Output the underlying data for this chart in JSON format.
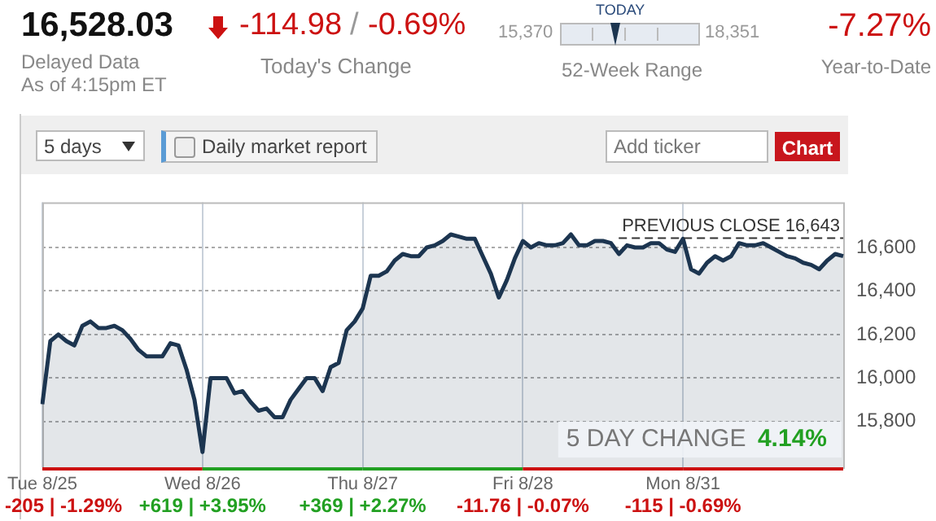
{
  "chart_data": [
    {
      "type": "other",
      "title": "16,528.03",
      "annotations": [
        "Delayed Data",
        "As of 4:15pm ET",
        "-114.98",
        "/",
        "-0.69%",
        "Today's Change",
        "TODAY",
        "15,370",
        "18,351",
        "52-Week Range",
        "-7.27%",
        "Year-to-Date",
        "5 days",
        "Daily market report",
        "Add ticker",
        "Chart"
      ]
    },
    {
      "type": "area",
      "categories": [
        "Tue 8/25",
        null,
        null,
        null,
        null,
        null,
        null,
        null,
        null,
        null,
        null,
        null,
        null,
        null,
        null,
        null,
        null,
        null,
        null,
        null,
        "Wed 8/26",
        null,
        null,
        null,
        null,
        null,
        null,
        null,
        null,
        null,
        null,
        null,
        null,
        null,
        null,
        null,
        null,
        null,
        null,
        null,
        "Thu 8/27",
        null,
        null,
        null,
        null,
        null,
        null,
        null,
        null,
        null,
        null,
        null,
        null,
        null,
        null,
        null,
        null,
        null,
        null,
        null,
        "Fri 8/28",
        null,
        null,
        null,
        null,
        null,
        null,
        null,
        null,
        null,
        null,
        null,
        null,
        null,
        null,
        null,
        null,
        null,
        null,
        null,
        "Mon 8/31",
        null,
        null,
        null,
        null,
        null,
        null,
        null,
        null,
        null,
        null,
        null,
        null,
        null,
        null,
        null,
        null,
        null,
        null,
        null,
        null
      ],
      "series": [
        {
          "color": "#1c3550",
          "values": [
            15880,
            16170,
            16200,
            16170,
            16150,
            16240,
            16260,
            16230,
            16230,
            16240,
            16220,
            16180,
            16130,
            16100,
            16100,
            16100,
            16160,
            16150,
            16040,
            15900,
            15660,
            16000,
            16000,
            16000,
            15930,
            15940,
            15890,
            15850,
            15860,
            15820,
            15820,
            15900,
            15950,
            16000,
            16000,
            15940,
            16050,
            16070,
            16220,
            16260,
            16320,
            16470,
            16470,
            16490,
            16540,
            16570,
            16560,
            16560,
            16600,
            16610,
            16630,
            16660,
            16650,
            16640,
            16640,
            16560,
            16480,
            16370,
            16450,
            16550,
            16630,
            16600,
            16620,
            16610,
            16610,
            16620,
            16660,
            16610,
            16610,
            16630,
            16630,
            16620,
            16570,
            16610,
            16600,
            16600,
            16620,
            16620,
            16590,
            16580,
            16640,
            16500,
            16480,
            16530,
            16560,
            16540,
            16560,
            16620,
            16610,
            16610,
            16620,
            16600,
            16580,
            16560,
            16550,
            16530,
            16520,
            16500,
            16540,
            16570,
            16560
          ]
        }
      ],
      "ylim": [
        15590,
        16808
      ],
      "yticks": [
        {
          "value": 15800,
          "label": "15,800"
        },
        {
          "value": 16000,
          "label": "16,000"
        },
        {
          "value": 16200,
          "label": "16,200"
        },
        {
          "value": 16400,
          "label": "16,400"
        },
        {
          "value": 16600,
          "label": "16,600"
        }
      ],
      "grid": true,
      "legend": false,
      "marker": "none",
      "line_style": "solid",
      "ref_lines": [
        {
          "axis": "y",
          "value": 16643,
          "label": "PREVIOUS CLOSE 16,643",
          "line_style": "dashed"
        }
      ],
      "annotations": [
        "5 DAY CHANGE",
        "4.14%",
        "-205 | -1.29%",
        "+619 | +3.95%",
        "+369 | +2.27%",
        "-11.76 | -0.07%",
        "-115 | -0.69%"
      ]
    }
  ]
}
